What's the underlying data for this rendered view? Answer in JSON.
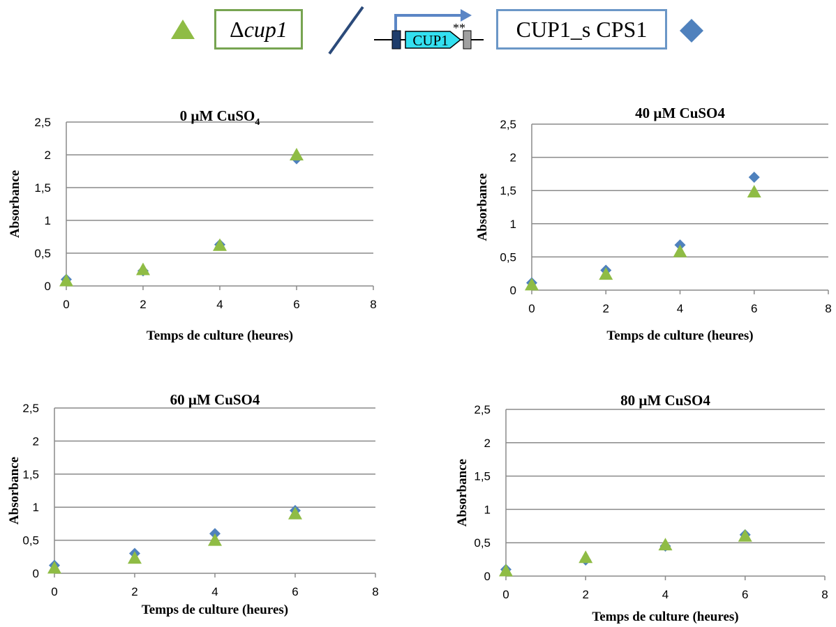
{
  "legend": {
    "mutant": {
      "prefix": "Δ",
      "gene": "cup1",
      "color": "#8fbc45",
      "marker": "triangle"
    },
    "strain": {
      "label": "CUP1_s CPS1",
      "color": "#4f81bd",
      "marker": "diamond"
    },
    "construct": {
      "gene_label": "CUP1",
      "mark": "**",
      "promoter_color": "#1f3d6b",
      "gene_color": "#33e0f0",
      "terminator_color": "#a0a0a0",
      "arrow_color": "#5b86c5"
    },
    "slash_color": "#2b4a7a"
  },
  "chart_data": [
    {
      "type": "scatter",
      "title_main": "0 µM CuSO",
      "title_sub": "4",
      "xlabel": "Temps de culture (heures)",
      "ylabel": "Absorbance",
      "xlim": [
        0,
        8
      ],
      "ylim": [
        0,
        2.5
      ],
      "xticks": [
        "0",
        "2",
        "4",
        "6",
        "8"
      ],
      "yticks": [
        "0",
        "0,5",
        "1",
        "1,5",
        "2",
        "2,5"
      ],
      "grid": "horizontal",
      "series": [
        {
          "marker": "diamond",
          "color": "#4f81bd",
          "x": [
            0,
            2,
            4,
            6
          ],
          "y": [
            0.1,
            0.23,
            0.63,
            1.94
          ]
        },
        {
          "marker": "triangle",
          "color": "#8fbc45",
          "x": [
            0,
            2,
            4,
            6
          ],
          "y": [
            0.08,
            0.25,
            0.62,
            2.0
          ]
        }
      ]
    },
    {
      "type": "scatter",
      "title_main": "40 µM CuSO4",
      "title_sub": "",
      "xlabel": "Temps de culture (heures)",
      "ylabel": "Absorbance",
      "xlim": [
        0,
        8
      ],
      "ylim": [
        0,
        2.5
      ],
      "xticks": [
        "0",
        "2",
        "4",
        "6",
        "8"
      ],
      "yticks": [
        "0",
        "0,5",
        "1",
        "1,5",
        "2",
        "2,5"
      ],
      "grid": "horizontal",
      "series": [
        {
          "marker": "diamond",
          "color": "#4f81bd",
          "x": [
            0,
            2,
            4,
            6
          ],
          "y": [
            0.11,
            0.3,
            0.68,
            1.7
          ]
        },
        {
          "marker": "triangle",
          "color": "#8fbc45",
          "x": [
            0,
            2,
            4,
            6
          ],
          "y": [
            0.08,
            0.24,
            0.58,
            1.48
          ]
        }
      ]
    },
    {
      "type": "scatter",
      "title_main": "60 µM CuSO4",
      "title_sub": "",
      "xlabel": "Temps de culture (heures)",
      "ylabel": "Absorbance",
      "xlim": [
        0,
        8
      ],
      "ylim": [
        0,
        2.5
      ],
      "xticks": [
        "0",
        "2",
        "4",
        "6",
        "8"
      ],
      "yticks": [
        "0",
        "0,5",
        "1",
        "1,5",
        "2",
        "2,5"
      ],
      "grid": "horizontal",
      "series": [
        {
          "marker": "diamond",
          "color": "#4f81bd",
          "x": [
            0,
            2,
            4,
            6
          ],
          "y": [
            0.12,
            0.3,
            0.6,
            0.95
          ]
        },
        {
          "marker": "triangle",
          "color": "#8fbc45",
          "x": [
            0,
            2,
            4,
            6
          ],
          "y": [
            0.08,
            0.23,
            0.5,
            0.9
          ]
        }
      ]
    },
    {
      "type": "scatter",
      "title_main": "80 µM CuSO4",
      "title_sub": "",
      "xlabel": "Temps de culture (heures)",
      "ylabel": "Absorbance",
      "xlim": [
        0,
        8
      ],
      "ylim": [
        0,
        2.5
      ],
      "xticks": [
        "0",
        "2",
        "4",
        "6",
        "8"
      ],
      "yticks": [
        "0",
        "0,5",
        "1",
        "1,5",
        "2",
        "2,5"
      ],
      "grid": "horizontal",
      "series": [
        {
          "marker": "diamond",
          "color": "#4f81bd",
          "x": [
            0,
            2,
            4,
            6
          ],
          "y": [
            0.1,
            0.24,
            0.45,
            0.62
          ]
        },
        {
          "marker": "triangle",
          "color": "#8fbc45",
          "x": [
            0,
            2,
            4,
            6
          ],
          "y": [
            0.08,
            0.28,
            0.47,
            0.6
          ]
        }
      ]
    }
  ]
}
